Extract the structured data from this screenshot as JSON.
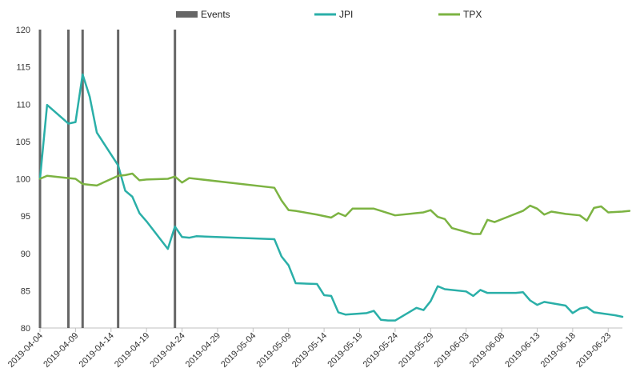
{
  "chart_data": {
    "type": "line",
    "x_type": "date",
    "xlim": [
      "2019-04-04",
      "2019-06-25"
    ],
    "ylim": [
      80,
      120
    ],
    "y_ticks": [
      80,
      85,
      90,
      95,
      100,
      105,
      110,
      115,
      120
    ],
    "x_ticks": [
      "2019-04-04",
      "2019-04-09",
      "2019-04-14",
      "2019-04-19",
      "2019-04-24",
      "2019-04-29",
      "2019-05-04",
      "2019-05-09",
      "2019-05-14",
      "2019-05-19",
      "2019-05-24",
      "2019-05-29",
      "2019-06-03",
      "2019-06-08",
      "2019-06-13",
      "2019-06-18",
      "2019-06-23"
    ],
    "grid": false,
    "legend_position": "top-center",
    "legend": [
      "Events",
      "JPI",
      "TPX"
    ],
    "events": {
      "name": "Events",
      "color": "#666666",
      "dates": [
        "2019-04-04",
        "2019-04-08",
        "2019-04-10",
        "2019-04-15",
        "2019-04-23"
      ]
    },
    "series": [
      {
        "name": "JPI",
        "color": "#2AAFA8",
        "points": [
          [
            "2019-04-04",
            100.0
          ],
          [
            "2019-04-05",
            109.9
          ],
          [
            "2019-04-08",
            107.4
          ],
          [
            "2019-04-09",
            107.6
          ],
          [
            "2019-04-10",
            114.0
          ],
          [
            "2019-04-11",
            111.0
          ],
          [
            "2019-04-12",
            106.2
          ],
          [
            "2019-04-15",
            101.8
          ],
          [
            "2019-04-16",
            98.4
          ],
          [
            "2019-04-17",
            97.6
          ],
          [
            "2019-04-18",
            95.4
          ],
          [
            "2019-04-19",
            94.3
          ],
          [
            "2019-04-22",
            90.6
          ],
          [
            "2019-04-23",
            93.6
          ],
          [
            "2019-04-24",
            92.2
          ],
          [
            "2019-04-25",
            92.1
          ],
          [
            "2019-04-26",
            92.3
          ],
          [
            "2019-05-07",
            91.9
          ],
          [
            "2019-05-08",
            89.6
          ],
          [
            "2019-05-09",
            88.4
          ],
          [
            "2019-05-10",
            86.0
          ],
          [
            "2019-05-13",
            85.9
          ],
          [
            "2019-05-14",
            84.4
          ],
          [
            "2019-05-15",
            84.3
          ],
          [
            "2019-05-16",
            82.1
          ],
          [
            "2019-05-17",
            81.8
          ],
          [
            "2019-05-20",
            82.0
          ],
          [
            "2019-05-21",
            82.3
          ],
          [
            "2019-05-22",
            81.1
          ],
          [
            "2019-05-23",
            81.0
          ],
          [
            "2019-05-24",
            81.0
          ],
          [
            "2019-05-27",
            82.7
          ],
          [
            "2019-05-28",
            82.4
          ],
          [
            "2019-05-29",
            83.6
          ],
          [
            "2019-05-30",
            85.6
          ],
          [
            "2019-05-31",
            85.2
          ],
          [
            "2019-06-03",
            84.9
          ],
          [
            "2019-06-04",
            84.3
          ],
          [
            "2019-06-05",
            85.1
          ],
          [
            "2019-06-06",
            84.7
          ],
          [
            "2019-06-07",
            84.7
          ],
          [
            "2019-06-10",
            84.7
          ],
          [
            "2019-06-11",
            84.8
          ],
          [
            "2019-06-12",
            83.7
          ],
          [
            "2019-06-13",
            83.1
          ],
          [
            "2019-06-14",
            83.5
          ],
          [
            "2019-06-17",
            83.0
          ],
          [
            "2019-06-18",
            82.0
          ],
          [
            "2019-06-19",
            82.6
          ],
          [
            "2019-06-20",
            82.8
          ],
          [
            "2019-06-21",
            82.1
          ],
          [
            "2019-06-24",
            81.7
          ],
          [
            "2019-06-25",
            81.5
          ]
        ]
      },
      {
        "name": "TPX",
        "color": "#7CB342",
        "points": [
          [
            "2019-04-04",
            100.0
          ],
          [
            "2019-04-05",
            100.4
          ],
          [
            "2019-04-08",
            100.1
          ],
          [
            "2019-04-09",
            100.0
          ],
          [
            "2019-04-10",
            99.3
          ],
          [
            "2019-04-11",
            99.2
          ],
          [
            "2019-04-12",
            99.1
          ],
          [
            "2019-04-15",
            100.4
          ],
          [
            "2019-04-16",
            100.5
          ],
          [
            "2019-04-17",
            100.7
          ],
          [
            "2019-04-18",
            99.8
          ],
          [
            "2019-04-19",
            99.9
          ],
          [
            "2019-04-22",
            100.0
          ],
          [
            "2019-04-23",
            100.3
          ],
          [
            "2019-04-24",
            99.5
          ],
          [
            "2019-04-25",
            100.1
          ],
          [
            "2019-05-07",
            98.8
          ],
          [
            "2019-05-08",
            97.1
          ],
          [
            "2019-05-09",
            95.8
          ],
          [
            "2019-05-10",
            95.7
          ],
          [
            "2019-05-13",
            95.2
          ],
          [
            "2019-05-14",
            95.0
          ],
          [
            "2019-05-15",
            94.8
          ],
          [
            "2019-05-16",
            95.4
          ],
          [
            "2019-05-17",
            95.0
          ],
          [
            "2019-05-18",
            96.0
          ],
          [
            "2019-05-20",
            96.0
          ],
          [
            "2019-05-21",
            96.0
          ],
          [
            "2019-05-22",
            95.7
          ],
          [
            "2019-05-24",
            95.1
          ],
          [
            "2019-05-27",
            95.4
          ],
          [
            "2019-05-28",
            95.5
          ],
          [
            "2019-05-29",
            95.8
          ],
          [
            "2019-05-30",
            94.9
          ],
          [
            "2019-05-31",
            94.6
          ],
          [
            "2019-06-01",
            93.4
          ],
          [
            "2019-06-04",
            92.6
          ],
          [
            "2019-06-05",
            92.6
          ],
          [
            "2019-06-06",
            94.5
          ],
          [
            "2019-06-07",
            94.2
          ],
          [
            "2019-06-11",
            95.7
          ],
          [
            "2019-06-12",
            96.4
          ],
          [
            "2019-06-13",
            96.0
          ],
          [
            "2019-06-14",
            95.2
          ],
          [
            "2019-06-15",
            95.6
          ],
          [
            "2019-06-17",
            95.3
          ],
          [
            "2019-06-19",
            95.1
          ],
          [
            "2019-06-20",
            94.4
          ],
          [
            "2019-06-21",
            96.1
          ],
          [
            "2019-06-22",
            96.3
          ],
          [
            "2019-06-23",
            95.5
          ],
          [
            "2019-06-25",
            95.6
          ],
          [
            "2019-06-26",
            95.7
          ]
        ]
      }
    ]
  }
}
